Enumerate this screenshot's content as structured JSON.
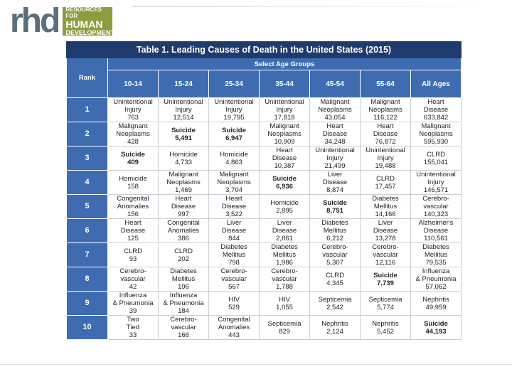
{
  "logo": {
    "mark": "rhd",
    "line1": "RESOURCES FOR",
    "line2": "HUMAN",
    "line3": "DEVELOPMENT"
  },
  "table": {
    "title": "Table 1. Leading Causes of Death in the United States (2015)",
    "group_header": "Select Age Groups",
    "rank_header": "Rank",
    "age_groups": [
      "10-14",
      "15-24",
      "25-34",
      "35-44",
      "45-54",
      "55-64",
      "All Ages"
    ],
    "rows": [
      {
        "rank": "1",
        "cells": [
          {
            "lines": [
              "Unintentional",
              "Injury",
              "763"
            ],
            "hl": false
          },
          {
            "lines": [
              "Unintentional",
              "Injury",
              "12,514"
            ],
            "hl": false
          },
          {
            "lines": [
              "Unintentional",
              "Injury",
              "19,795"
            ],
            "hl": false
          },
          {
            "lines": [
              "Unintentional",
              "Injury",
              "17,818"
            ],
            "hl": false
          },
          {
            "lines": [
              "Malignant",
              "Neoplasms",
              "43,054"
            ],
            "hl": false
          },
          {
            "lines": [
              "Malignant",
              "Neoplasms",
              "116,122"
            ],
            "hl": false
          },
          {
            "lines": [
              "Heart",
              "Disease",
              "633,842"
            ],
            "hl": false
          }
        ]
      },
      {
        "rank": "2",
        "cells": [
          {
            "lines": [
              "Malignant",
              "Neoplasms",
              "428"
            ],
            "hl": false
          },
          {
            "lines": [
              "Suicide",
              "5,491"
            ],
            "hl": true
          },
          {
            "lines": [
              "Suicide",
              "6,947"
            ],
            "hl": true
          },
          {
            "lines": [
              "Malignant",
              "Neoplasms",
              "10,909"
            ],
            "hl": false
          },
          {
            "lines": [
              "Heart",
              "Disease",
              "34,248"
            ],
            "hl": false
          },
          {
            "lines": [
              "Heart",
              "Disease",
              "76,872"
            ],
            "hl": false
          },
          {
            "lines": [
              "Malignant",
              "Neoplasms",
              "595,930"
            ],
            "hl": false
          }
        ]
      },
      {
        "rank": "3",
        "cells": [
          {
            "lines": [
              "Suicide",
              "409"
            ],
            "hl": true
          },
          {
            "lines": [
              "Homicide",
              "4,733"
            ],
            "hl": false
          },
          {
            "lines": [
              "Homicide",
              "4,863"
            ],
            "hl": false
          },
          {
            "lines": [
              "Heart",
              "Disease",
              "10,387"
            ],
            "hl": false
          },
          {
            "lines": [
              "Unintentional",
              "Injury",
              "21,499"
            ],
            "hl": false
          },
          {
            "lines": [
              "Unintentional",
              "Injury",
              "19,488"
            ],
            "hl": false
          },
          {
            "lines": [
              "CLRD",
              "155,041"
            ],
            "hl": false
          }
        ]
      },
      {
        "rank": "4",
        "cells": [
          {
            "lines": [
              "Homicide",
              "158"
            ],
            "hl": false
          },
          {
            "lines": [
              "Malignant",
              "Neoplasms",
              "1,469"
            ],
            "hl": false
          },
          {
            "lines": [
              "Malignant",
              "Neoplasms",
              "3,704"
            ],
            "hl": false
          },
          {
            "lines": [
              "Suicide",
              "6,936"
            ],
            "hl": true
          },
          {
            "lines": [
              "Liver",
              "Disease",
              "8,874"
            ],
            "hl": false
          },
          {
            "lines": [
              "CLRD",
              "17,457"
            ],
            "hl": false
          },
          {
            "lines": [
              "Unintentional",
              "Injury",
              "146,571"
            ],
            "hl": false
          }
        ]
      },
      {
        "rank": "5",
        "cells": [
          {
            "lines": [
              "Congenital",
              "Anomalies",
              "156"
            ],
            "hl": false
          },
          {
            "lines": [
              "Heart",
              "Disease",
              "997"
            ],
            "hl": false
          },
          {
            "lines": [
              "Heart",
              "Disease",
              "3,522"
            ],
            "hl": false
          },
          {
            "lines": [
              "Homicide",
              "2,895"
            ],
            "hl": false
          },
          {
            "lines": [
              "Suicide",
              "8,751"
            ],
            "hl": true
          },
          {
            "lines": [
              "Diabetes",
              "Mellitus",
              "14,166"
            ],
            "hl": false
          },
          {
            "lines": [
              "Cerebro-",
              "vascular",
              "140,323"
            ],
            "hl": false
          }
        ]
      },
      {
        "rank": "6",
        "cells": [
          {
            "lines": [
              "Heart",
              "Disease",
              "125"
            ],
            "hl": false
          },
          {
            "lines": [
              "Congenital",
              "Anomalies",
              "386"
            ],
            "hl": false
          },
          {
            "lines": [
              "Liver",
              "Disease",
              "844"
            ],
            "hl": false
          },
          {
            "lines": [
              "Liver",
              "Disease",
              "2,861"
            ],
            "hl": false
          },
          {
            "lines": [
              "Diabetes",
              "Mellitus",
              "6,212"
            ],
            "hl": false
          },
          {
            "lines": [
              "Liver",
              "Disease",
              "13,278"
            ],
            "hl": false
          },
          {
            "lines": [
              "Alzheimer's",
              "Disease",
              "110,561"
            ],
            "hl": false
          }
        ]
      },
      {
        "rank": "7",
        "cells": [
          {
            "lines": [
              "CLRD",
              "93"
            ],
            "hl": false
          },
          {
            "lines": [
              "CLRD",
              "202"
            ],
            "hl": false
          },
          {
            "lines": [
              "Diabetes",
              "Mellitus",
              "798"
            ],
            "hl": false
          },
          {
            "lines": [
              "Diabetes",
              "Mellitus",
              "1,986"
            ],
            "hl": false
          },
          {
            "lines": [
              "Cerebro-",
              "vascular",
              "5,307"
            ],
            "hl": false
          },
          {
            "lines": [
              "Cerebro-",
              "vascular",
              "12,116"
            ],
            "hl": false
          },
          {
            "lines": [
              "Diabetes",
              "Mellitus",
              "79,535"
            ],
            "hl": false
          }
        ]
      },
      {
        "rank": "8",
        "cells": [
          {
            "lines": [
              "Cerebro-",
              "vascular",
              "42"
            ],
            "hl": false
          },
          {
            "lines": [
              "Diabetes",
              "Mellitus",
              "196"
            ],
            "hl": false
          },
          {
            "lines": [
              "Cerebro-",
              "vascular",
              "567"
            ],
            "hl": false
          },
          {
            "lines": [
              "Cerebro-",
              "vascular",
              "1,788"
            ],
            "hl": false
          },
          {
            "lines": [
              "CLRD",
              "4,345"
            ],
            "hl": false
          },
          {
            "lines": [
              "Suicide",
              "7,739"
            ],
            "hl": true
          },
          {
            "lines": [
              "Influenza",
              "& Pneumonia",
              "57,062"
            ],
            "hl": false
          }
        ]
      },
      {
        "rank": "9",
        "cells": [
          {
            "lines": [
              "Influenza",
              "& Pneumonia",
              "39"
            ],
            "hl": false
          },
          {
            "lines": [
              "Influenza",
              "& Pneumonia",
              "184"
            ],
            "hl": false
          },
          {
            "lines": [
              "HIV",
              "529"
            ],
            "hl": false
          },
          {
            "lines": [
              "HIV",
              "1,055"
            ],
            "hl": false
          },
          {
            "lines": [
              "Septicemia",
              "2,542"
            ],
            "hl": false
          },
          {
            "lines": [
              "Septicemia",
              "5,774"
            ],
            "hl": false
          },
          {
            "lines": [
              "Nephritis",
              "49,959"
            ],
            "hl": false
          }
        ]
      },
      {
        "rank": "10",
        "cells": [
          {
            "lines": [
              "Two",
              "Tied",
              "33"
            ],
            "hl": false
          },
          {
            "lines": [
              "Cerebro-",
              "vascular",
              "166"
            ],
            "hl": false
          },
          {
            "lines": [
              "Congenital",
              "Anomalies",
              "443"
            ],
            "hl": false
          },
          {
            "lines": [
              "Septicemia",
              "829"
            ],
            "hl": false
          },
          {
            "lines": [
              "Nephritis",
              "2,124"
            ],
            "hl": false
          },
          {
            "lines": [
              "Nephritis",
              "5,452"
            ],
            "hl": false
          },
          {
            "lines": [
              "Suicide",
              "44,193"
            ],
            "hl": true
          }
        ]
      }
    ]
  },
  "colors": {
    "title_bg": "#1f3b6e",
    "header_bg": "#3f6cb1",
    "highlight": "#b4c4e4",
    "logo_green": "#8d9c3f",
    "logo_gray": "#5b6f7c"
  }
}
